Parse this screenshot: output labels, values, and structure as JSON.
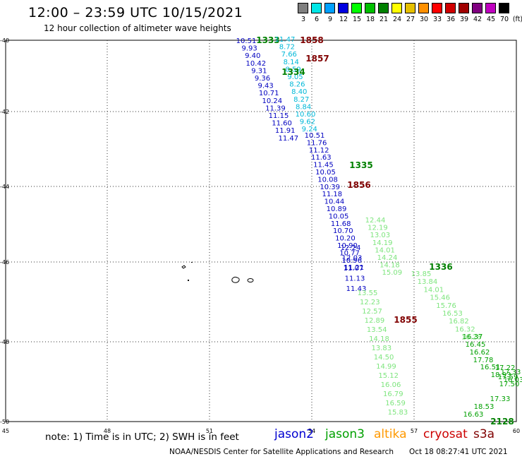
{
  "header": {
    "title": "12:00 – 23:59 UTC 10/15/2021",
    "subtitle": "12 hour collection of altimeter wave heights"
  },
  "legend": {
    "unit": "(ft)",
    "scale": [
      {
        "label": "3",
        "color": "#7f7f7f"
      },
      {
        "label": "6",
        "color": "#00e6e6"
      },
      {
        "label": "9",
        "color": "#00a0ff"
      },
      {
        "label": "12",
        "color": "#0000e0"
      },
      {
        "label": "15",
        "color": "#00ff00"
      },
      {
        "label": "18",
        "color": "#00c000"
      },
      {
        "label": "21",
        "color": "#008000"
      },
      {
        "label": "24",
        "color": "#ffff00"
      },
      {
        "label": "27",
        "color": "#e6c000"
      },
      {
        "label": "30",
        "color": "#ff9000"
      },
      {
        "label": "33",
        "color": "#ff0000"
      },
      {
        "label": "36",
        "color": "#d00000"
      },
      {
        "label": "39",
        "color": "#a00000"
      },
      {
        "label": "42",
        "color": "#800080"
      },
      {
        "label": "45",
        "color": "#c000c0"
      },
      {
        "label": "70",
        "color": "#000000"
      }
    ]
  },
  "map": {
    "lat_labels": [
      "-40",
      "-42",
      "-44",
      "-46",
      "-48",
      "-50"
    ],
    "lon_labels": [
      "45",
      "48",
      "51",
      "54",
      "57",
      "60"
    ],
    "tracks": [
      {
        "id": "a1",
        "color": "#0000c0",
        "label": "1333",
        "label_color": "#008000",
        "values": [
          "10.51",
          "9.93",
          "9.40",
          "10.42",
          "9.31",
          "9.36",
          "9.43",
          "10.71",
          "10.24",
          "11.39",
          "11.15",
          "11.60",
          "11.91",
          "11.47"
        ]
      },
      {
        "id": "a2",
        "color": "#00b8d8",
        "label": "1858",
        "label_color": "#800000",
        "values": [
          "11.47",
          "8.72",
          "7.66",
          "8.14",
          "8.59",
          "9.05",
          "8.26",
          "8.40",
          "8.27",
          "8.84",
          "10.60",
          "9.62",
          "9.24"
        ]
      },
      {
        "id": "a3",
        "color": "#000000",
        "label": "1857",
        "label_color": "#800000",
        "values": []
      },
      {
        "id": "b",
        "color": "#0000c0",
        "label": "1334",
        "label_color": "#008000",
        "values": [
          "10.51",
          "11.76",
          "11.12",
          "11.63",
          "11.45",
          "10.05",
          "10.08",
          "10.39",
          "11.18",
          "10.44",
          "10.89",
          "10.05",
          "11.68",
          "10.70",
          "10.20",
          "10.90",
          "10.77",
          "10.96",
          "11.21"
        ]
      },
      {
        "id": "c",
        "color": "#7ee57e",
        "label": "1335",
        "label_color": "#008000",
        "values": [
          "12.44",
          "12.19",
          "13.03",
          "14.19",
          "14.01",
          "14.24",
          "14.18",
          "15.09"
        ]
      },
      {
        "id": "d",
        "color": "#0000c0",
        "label": "1856",
        "label_color": "#800000",
        "values": [
          "12.24",
          "12.03",
          "11.07",
          "11.13",
          "11.43"
        ]
      },
      {
        "id": "e",
        "color": "#7ee57e",
        "label": "1855",
        "label_color": "#800000",
        "values": [
          "13.55",
          "12.23",
          "12.57",
          "12.89",
          "13.54",
          "14.18",
          "13.83",
          "14.50",
          "14.99",
          "15.12",
          "16.06",
          "16.79",
          "16.59",
          "15.83"
        ]
      },
      {
        "id": "f",
        "color": "#7ee57e",
        "label": "1336",
        "label_color": "#008000",
        "values": [
          "13.85",
          "13.84",
          "14.01",
          "15.46",
          "15.76",
          "16.53",
          "16.82",
          "16.32",
          "16.28"
        ]
      },
      {
        "id": "g",
        "color": "#00a000",
        "label": "2128",
        "label_color": "#008000",
        "values": [
          "16.37",
          "16.45",
          "16.62",
          "17.78",
          "16.51",
          "18.93",
          "17.22",
          "17.33",
          "17.59",
          "16.03",
          "17.50",
          "17.33",
          "18.53",
          "16.63"
        ]
      }
    ]
  },
  "footer": {
    "note": "note:  1) Time is in UTC;  2) SWH is in feet",
    "satellites": [
      {
        "name": "jason2",
        "color": "#0000d0"
      },
      {
        "name": "jason3",
        "color": "#00a000"
      },
      {
        "name": "altika",
        "color": "#ff9900"
      },
      {
        "name": "cryosat",
        "color": "#cc0000"
      },
      {
        "name": "s3a",
        "color": "#800000"
      }
    ],
    "credit": "NOAA/NESDIS Center for Satellite Applications and Research",
    "date": "Oct 18 08:27:41 UTC 2021"
  }
}
